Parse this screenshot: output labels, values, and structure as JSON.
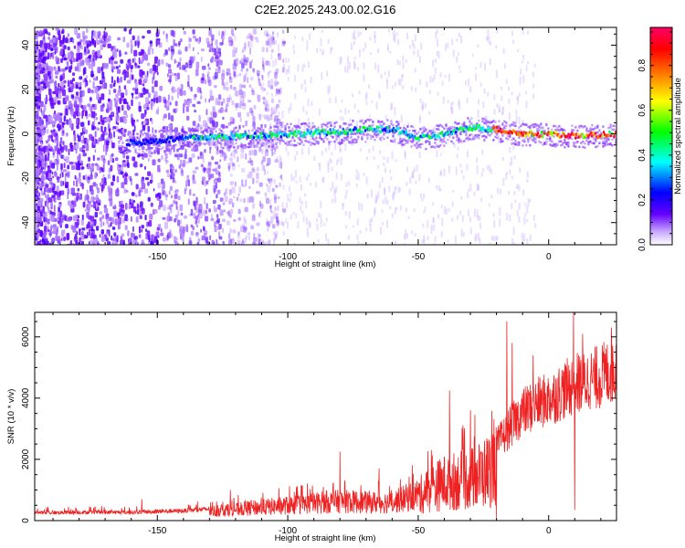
{
  "figure": {
    "title": "C2E2.2025.243.00.02.G16"
  },
  "chart_data": [
    {
      "type": "heatmap",
      "xlabel": "Height of straight line (km)",
      "ylabel": "Frequency (Hz)",
      "xlim": [
        -197,
        26
      ],
      "ylim": [
        -50,
        48
      ],
      "xticks": [
        -150,
        -100,
        -50,
        0
      ],
      "yticks": [
        -40,
        -20,
        0,
        20,
        40
      ],
      "colorbar": {
        "label": "Normalized spectral amplitude",
        "range": [
          0,
          0.97
        ],
        "ticks": [
          0.0,
          0.2,
          0.4,
          0.6,
          0.8
        ],
        "tick_labels": [
          "0.0",
          "0.2",
          "0.4",
          "0.6",
          "0.8"
        ],
        "colormap": [
          "#ffffff",
          "#6600ff",
          "#0000ff",
          "#00ffff",
          "#00ff00",
          "#ffff00",
          "#ff8000",
          "#ff0000",
          "#ff0066"
        ]
      },
      "ridge": [
        {
          "x": -160,
          "y": -4
        },
        {
          "x": -140,
          "y": -2
        },
        {
          "x": -120,
          "y": -1
        },
        {
          "x": -100,
          "y": 0
        },
        {
          "x": -80,
          "y": 1
        },
        {
          "x": -70,
          "y": 2
        },
        {
          "x": -60,
          "y": 2
        },
        {
          "x": -50,
          "y": -2
        },
        {
          "x": -40,
          "y": 0
        },
        {
          "x": -30,
          "y": 3
        },
        {
          "x": -20,
          "y": 2
        },
        {
          "x": -10,
          "y": 0
        },
        {
          "x": 0,
          "y": 0
        },
        {
          "x": 10,
          "y": -1
        },
        {
          "x": 26,
          "y": 0
        }
      ]
    },
    {
      "type": "line",
      "xlabel": "Height of straight line (km)",
      "ylabel": "SNR (10 * v/v)",
      "xlim": [
        -197,
        26
      ],
      "ylim": [
        0,
        6800
      ],
      "xticks": [
        -150,
        -100,
        -50,
        0
      ],
      "yticks": [
        0,
        2000,
        4000,
        6000
      ],
      "color": "#ee2222",
      "envelope": [
        {
          "x": -197,
          "y": 300
        },
        {
          "x": -180,
          "y": 320
        },
        {
          "x": -160,
          "y": 320
        },
        {
          "x": -150,
          "y": 350
        },
        {
          "x": -140,
          "y": 380
        },
        {
          "x": -130,
          "y": 450
        },
        {
          "x": -120,
          "y": 550
        },
        {
          "x": -110,
          "y": 650
        },
        {
          "x": -100,
          "y": 750
        },
        {
          "x": -90,
          "y": 850
        },
        {
          "x": -80,
          "y": 950
        },
        {
          "x": -70,
          "y": 900
        },
        {
          "x": -60,
          "y": 900
        },
        {
          "x": -50,
          "y": 1300
        },
        {
          "x": -45,
          "y": 1700
        },
        {
          "x": -40,
          "y": 2000
        },
        {
          "x": -35,
          "y": 2100
        },
        {
          "x": -30,
          "y": 2200
        },
        {
          "x": -25,
          "y": 2500
        },
        {
          "x": -20,
          "y": 2900
        },
        {
          "x": -15,
          "y": 3600
        },
        {
          "x": -10,
          "y": 4200
        },
        {
          "x": -5,
          "y": 4500
        },
        {
          "x": 0,
          "y": 4700
        },
        {
          "x": 5,
          "y": 5000
        },
        {
          "x": 10,
          "y": 5300
        },
        {
          "x": 15,
          "y": 5400
        },
        {
          "x": 20,
          "y": 5600
        },
        {
          "x": 26,
          "y": 5900
        }
      ],
      "spikes": [
        {
          "x": -156,
          "y": 700
        },
        {
          "x": -122,
          "y": 1000
        },
        {
          "x": -80,
          "y": 2250
        },
        {
          "x": -65,
          "y": 1700
        },
        {
          "x": -45,
          "y": 2300
        },
        {
          "x": -38,
          "y": 4250
        },
        {
          "x": -30,
          "y": 3600
        },
        {
          "x": -16,
          "y": 6500
        },
        {
          "x": -14,
          "y": 5800
        },
        {
          "x": -6,
          "y": 5400
        },
        {
          "x": 9.5,
          "y": 6800
        },
        {
          "x": 13,
          "y": 6100
        },
        {
          "x": 24,
          "y": 6300
        }
      ],
      "dips": [
        {
          "x": -20,
          "y": 100
        },
        {
          "x": 10,
          "y": 350
        },
        {
          "x": 16,
          "y": 4700
        }
      ]
    }
  ]
}
